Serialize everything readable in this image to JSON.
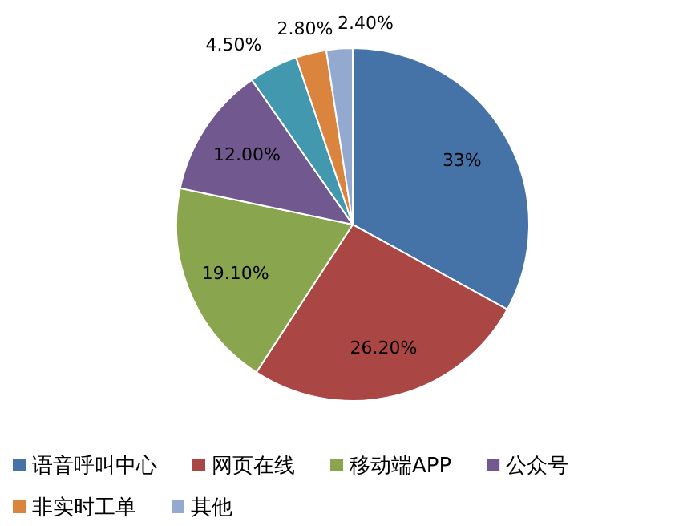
{
  "chart_data": {
    "type": "pie",
    "categories": [
      "语音呼叫中心",
      "网页在线",
      "移动端APP",
      "公众号",
      null,
      "非实时工单",
      "其他"
    ],
    "values": [
      33,
      26.2,
      19.1,
      12,
      4.5,
      2.8,
      2.4
    ],
    "value_labels": [
      "33%",
      "26.20%",
      "19.10%",
      "12.00%",
      "4.50%",
      "2.80%",
      "2.40%"
    ],
    "colors": [
      "#4572a7",
      "#aa4643",
      "#89a54e",
      "#71588f",
      "#4198af",
      "#db843d",
      "#93a9cf"
    ],
    "legend": "bottom"
  }
}
